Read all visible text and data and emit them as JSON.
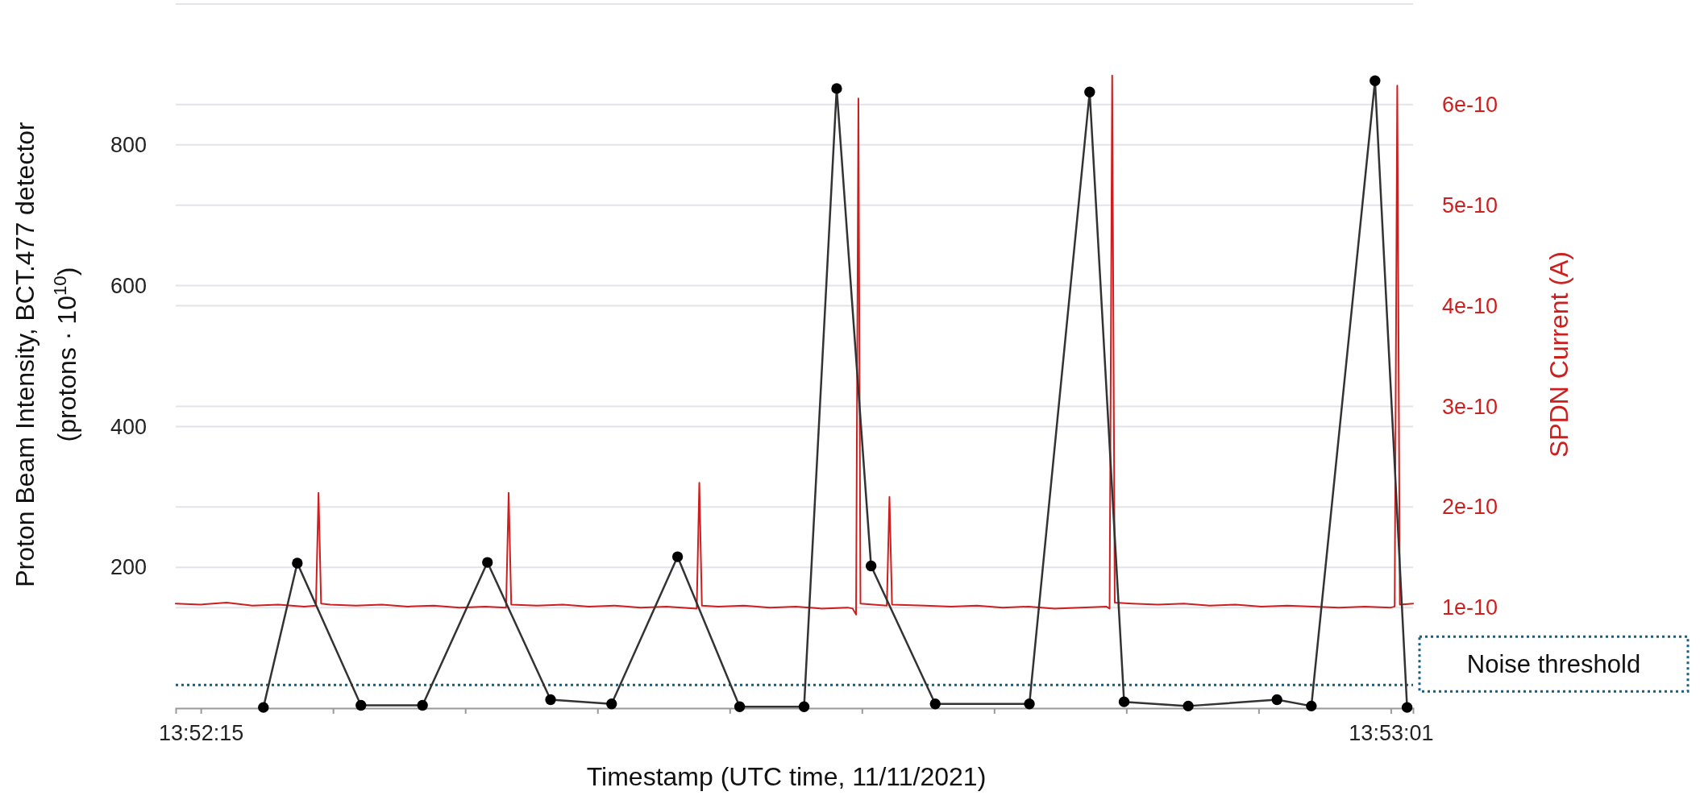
{
  "chart_data": {
    "type": "line",
    "xlabel": "Timestamp (UTC time, 11/11/2021)",
    "ylabel": "Proton Beam Intensity, BCT.477 detector\n(protons · 10$^{10}$)",
    "y2label": "SPDN Current (A)",
    "xlim": [
      13.8705639,
      13.88385
    ],
    "xticks": [
      {
        "value": 13.8708333,
        "label": "13:52:15"
      },
      {
        "value": 13.8722531,
        "label": null
      },
      {
        "value": 13.8736729,
        "label": null
      },
      {
        "value": 13.8750926,
        "label": null
      },
      {
        "value": 13.8765124,
        "label": null
      },
      {
        "value": 13.8779321,
        "label": null
      },
      {
        "value": 13.8793519,
        "label": null
      },
      {
        "value": 13.8807716,
        "label": null
      },
      {
        "value": 13.8821914,
        "label": null
      },
      {
        "value": 13.8836111,
        "label": "13:53:01"
      }
    ],
    "ylim": [
      0,
      1000
    ],
    "yticks": [
      200,
      400,
      600,
      800
    ],
    "y2lim": [
      0,
      7e-10
    ],
    "y2ticks": [
      1e-10,
      2e-10,
      3e-10,
      4e-10,
      5e-10,
      6e-10
    ],
    "grid": "y",
    "ref_lines": [
      {
        "axis": "y",
        "value": 33,
        "label": "Noise threshold",
        "color": "#1a5e7e",
        "line_style": "dotted"
      }
    ],
    "series": [
      {
        "color": "#cc1f1f",
        "axis": "y2",
        "marker": "none",
        "x": [
          13.8705639,
          13.8708333,
          13.8711111,
          13.8713889,
          13.8716667,
          13.8719444,
          13.8720694,
          13.8720972,
          13.872125,
          13.8722222,
          13.8725,
          13.8727778,
          13.8730556,
          13.8733333,
          13.8736111,
          13.8738889,
          13.8741111,
          13.8741389,
          13.8741667,
          13.8744444,
          13.8747222,
          13.875,
          13.8752778,
          13.8755556,
          13.8758333,
          13.8761583,
          13.8761861,
          13.8762139,
          13.8763889,
          13.8766667,
          13.8769444,
          13.8772222,
          13.8775,
          13.8777778,
          13.8778333,
          13.8778694,
          13.8778944,
          13.8779167,
          13.8780556,
          13.8781999,
          13.8782277,
          13.8782555,
          13.8786111,
          13.8788889,
          13.8791667,
          13.8794444,
          13.8797222,
          13.88,
          13.8802778,
          13.8805556,
          13.8805916,
          13.8806194,
          13.8806472,
          13.8808333,
          13.8811111,
          13.8813889,
          13.8816667,
          13.8819444,
          13.8822222,
          13.8825,
          13.8827778,
          13.8830556,
          13.8833333,
          13.8836111,
          13.8836527,
          13.8836805,
          13.8837083,
          13.88385
        ],
        "values": [
          1.04e-10,
          1.03e-10,
          1.05e-10,
          1.02e-10,
          1.03e-10,
          1.01e-10,
          1.02e-10,
          2.14e-10,
          1.04e-10,
          1.03e-10,
          1.02e-10,
          1.03e-10,
          1.01e-10,
          1.02e-10,
          1e-10,
          1.01e-10,
          1e-10,
          2.14e-10,
          1.03e-10,
          1.02e-10,
          1.03e-10,
          1.01e-10,
          1.02e-10,
          1e-10,
          1.01e-10,
          9.9e-11,
          2.24e-10,
          1.02e-10,
          1.01e-10,
          1.02e-10,
          1e-10,
          1.01e-10,
          9.9e-11,
          1e-10,
          9.9e-11,
          9.3e-11,
          6.06e-10,
          1.04e-10,
          1.03e-10,
          1.02e-10,
          2.1e-10,
          1.03e-10,
          1.02e-10,
          1.01e-10,
          1.02e-10,
          1e-10,
          1.01e-10,
          9.9e-11,
          1e-10,
          1.01e-10,
          9.9e-11,
          6.29e-10,
          1.05e-10,
          1.04e-10,
          1.03e-10,
          1.04e-10,
          1.02e-10,
          1.03e-10,
          1.01e-10,
          1.02e-10,
          1.01e-10,
          1e-10,
          1.01e-10,
          1e-10,
          1.01e-10,
          6.19e-10,
          1.03e-10,
          1.04e-10
        ]
      },
      {
        "color": "#333333",
        "marker": "circle",
        "x": [
          13.8715055,
          13.8718694,
          13.8725527,
          13.8732139,
          13.8739111,
          13.8745889,
          13.8752444,
          13.8759527,
          13.8766194,
          13.8773111,
          13.8776611,
          13.8780305,
          13.8787194,
          13.8797305,
          13.8803777,
          13.8807472,
          13.8814361,
          13.8823889,
          13.8827583,
          13.8834416,
          13.8837861
        ],
        "values": [
          1,
          206,
          4,
          4,
          207,
          12,
          6,
          215,
          2,
          2,
          880,
          202,
          6,
          6,
          875,
          9,
          3,
          12,
          3,
          891,
          1
        ]
      }
    ]
  }
}
